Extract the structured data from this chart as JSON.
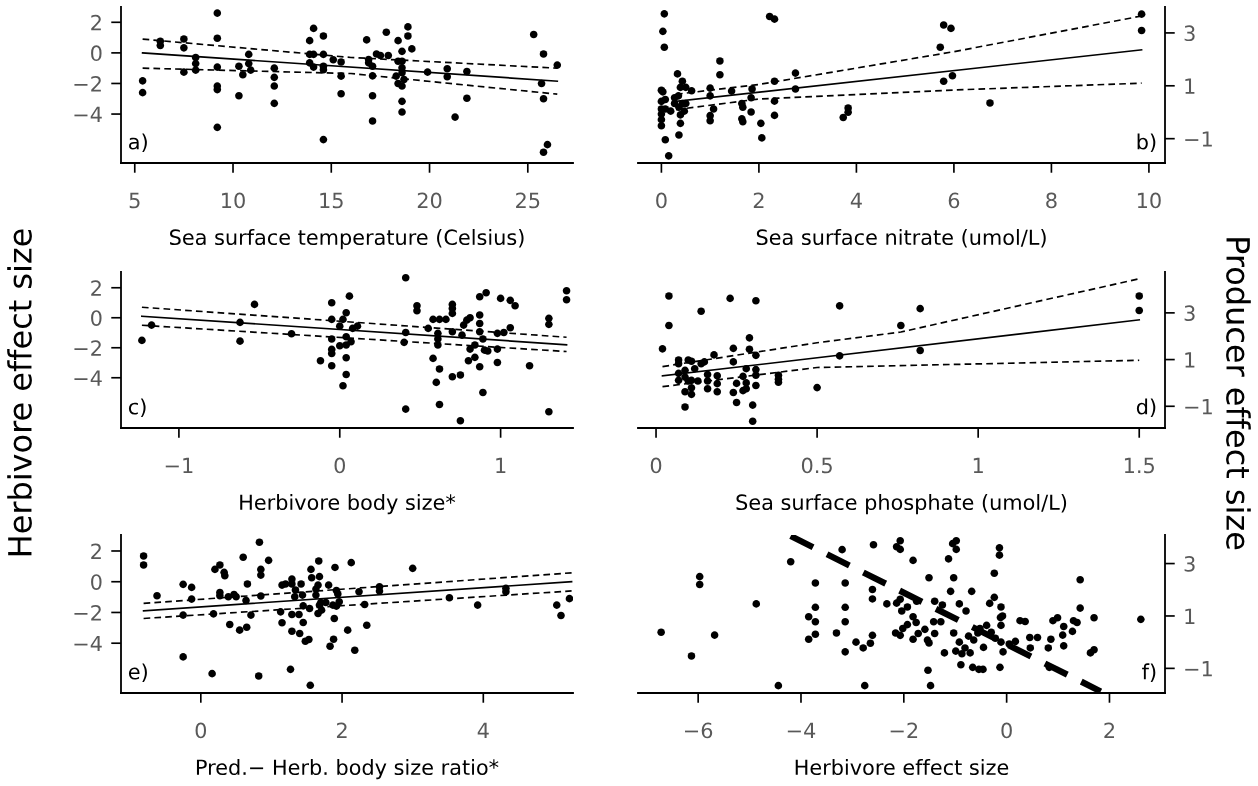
{
  "chart_data": [
    {
      "type": "scatter",
      "xlabel": "Sea surface temperature (Celsius)",
      "ylabel": "Herbivore effect size",
      "xlim": [
        4.3,
        27.3
      ],
      "xticks": [
        5,
        10,
        15,
        20,
        25
      ],
      "ylim": [
        -7.2,
        3.0
      ],
      "yticks": [
        2,
        0,
        -2,
        -4
      ],
      "grid": false,
      "legend": false,
      "annotations": [
        "a)"
      ],
      "series": [
        {
          "color": "#000000",
          "marker": "circle",
          "x": [
            5.4,
            5.4,
            6.3,
            6.3,
            7.5,
            7.5,
            7.5,
            8.1,
            8.1,
            8.1,
            9.2,
            9.2,
            9.2,
            9.2,
            9.2,
            9.2,
            10.3,
            10.3,
            10.5,
            10.8,
            10.8,
            10.9,
            12.1,
            12.1,
            12.1,
            12.1,
            13.9,
            13.9,
            13.9,
            14.1,
            14.1,
            14.1,
            14.6,
            14.6,
            14.6,
            14.6,
            14.6,
            15.1,
            15.5,
            15.5,
            15.5,
            16.8,
            16.9,
            16.9,
            17.1,
            17.1,
            17.1,
            17.1,
            17.3,
            17.5,
            17.8,
            17.9,
            18.4,
            18.4,
            18.3,
            18.4,
            18.6,
            18.6,
            18.6,
            18.6,
            18.6,
            18.6,
            18.6,
            18.7,
            18.9,
            18.9,
            19.1,
            19.9,
            20.9,
            20.9,
            21.3,
            21.9,
            21.9,
            25.3,
            25.8,
            25.7,
            25.8,
            25.8,
            26.0,
            26.5
          ],
          "values": [
            -1.83,
            -2.6,
            0.76,
            0.48,
            0.91,
            0.33,
            -1.26,
            -0.3,
            -0.7,
            -1.13,
            2.6,
            0.96,
            -0.93,
            -2.17,
            -2.4,
            -4.87,
            -0.87,
            -2.8,
            -1.43,
            -0.1,
            -0.7,
            -1.13,
            -1.0,
            -1.6,
            -2.17,
            -3.3,
            0.8,
            -0.1,
            -0.65,
            1.6,
            -0.1,
            -0.93,
            1.1,
            -0.1,
            -0.87,
            -1.1,
            -5.67,
            -0.45,
            -0.6,
            -1.52,
            -2.67,
            0.85,
            -0.43,
            -0.65,
            -0.87,
            -1.5,
            -2.8,
            -4.45,
            -0.07,
            -0.17,
            1.35,
            -0.17,
            0.8,
            -0.55,
            -1.52,
            -2.0,
            0.1,
            -0.55,
            -0.98,
            -1.3,
            -2.17,
            -3.17,
            -3.87,
            -1.74,
            1.7,
            1.1,
            0.26,
            -1.26,
            -1.04,
            -1.56,
            -4.2,
            -1.22,
            -2.97,
            1.2,
            -0.07,
            -2.0,
            -3.0,
            -6.5,
            -6.0,
            -0.8
          ]
        },
        {
          "type": "line",
          "color": "#000000",
          "line_style": "solid",
          "x": [
            5.4,
            26.5
          ],
          "values": [
            0.0,
            -1.85
          ]
        },
        {
          "type": "line",
          "color": "#000000",
          "line_style": "dashed",
          "x": [
            5.4,
            16,
            26.5
          ],
          "values": [
            0.9,
            -0.3,
            -1.0
          ]
        },
        {
          "type": "line",
          "color": "#000000",
          "line_style": "dashed",
          "x": [
            5.4,
            16,
            26.5
          ],
          "values": [
            -1.0,
            -1.35,
            -2.7
          ]
        }
      ]
    },
    {
      "type": "scatter",
      "xlabel": "Sea surface nitrate (umol/L)",
      "xlim": [
        -0.48,
        10.33
      ],
      "xticks": [
        0,
        2,
        4,
        6,
        8,
        10
      ],
      "y2lim": [
        -1.92,
        3.98
      ],
      "y2ticks": [
        3,
        1,
        -1
      ],
      "grid": false,
      "legend": false,
      "annotations": [
        "b)"
      ],
      "series": [
        {
          "axis": "y2",
          "color": "#000000",
          "marker": "circle",
          "x": [
            0.06,
            0.03,
            0.06,
            0,
            0.03,
            0,
            0.08,
            0,
            0,
            0,
            0,
            0.08,
            0.08,
            0.15,
            0.33,
            0.43,
            0.39,
            0.5,
            0.27,
            0.35,
            0.27,
            0.36,
            0.43,
            0.5,
            0.39,
            0.39,
            0.36,
            0.19,
            0.62,
            0.47,
            1.2,
            1.2,
            1.0,
            1.0,
            1.0,
            1.0,
            1.07,
            1.44,
            1.65,
            1.67,
            1.65,
            1.67,
            1.86,
            1.84,
            1.84,
            2.04,
            2.06,
            2.22,
            2.32,
            2.32,
            2.32,
            2.32,
            2.75,
            2.75,
            3.73,
            3.83,
            3.83,
            5.72,
            5.79,
            5.94,
            5.79,
            5.97,
            6.74,
            9.85,
            9.85
          ],
          "values": [
            3.72,
            3.06,
            2.46,
            0.83,
            0.77,
            0.41,
            0.48,
            0.12,
            -0.07,
            -0.28,
            -0.51,
            0.12,
            -1.04,
            -1.65,
            1.45,
            1.17,
            0.94,
            0.94,
            0.55,
            0.62,
            0.33,
            0.19,
            0.33,
            0.33,
            -0.1,
            -0.42,
            -0.86,
            0.04,
            0.81,
            0.04,
            1.94,
            1.42,
            0.91,
            0.62,
            -0.13,
            -0.32,
            0.12,
            0.8,
            0.33,
            0.19,
            -0.25,
            -0.36,
            0.88,
            0.55,
            0.01,
            -0.42,
            -0.97,
            3.62,
            3.52,
            1.17,
            0.42,
            -0.12,
            1.48,
            0.88,
            -0.2,
            0.16,
            0,
            2.46,
            3.3,
            3.17,
            1.17,
            1.38,
            0.35,
            3.71,
            3.09
          ]
        },
        {
          "type": "line",
          "axis": "y2",
          "color": "#000000",
          "line_style": "solid",
          "x": [
            0.3,
            9.85
          ],
          "values": [
            0.41,
            2.36
          ]
        },
        {
          "type": "line",
          "axis": "y2",
          "color": "#000000",
          "line_style": "dashed",
          "x": [
            0.3,
            2,
            6,
            9.85
          ],
          "values": [
            0.68,
            1.05,
            2.29,
            3.64
          ]
        },
        {
          "type": "line",
          "axis": "y2",
          "color": "#000000",
          "line_style": "dashed",
          "x": [
            0.3,
            2,
            6,
            9.85
          ],
          "values": [
            0.1,
            0.5,
            0.84,
            1.1
          ]
        }
      ]
    },
    {
      "type": "scatter",
      "xlabel": "Herbivore body size*",
      "xlim": [
        -1.36,
        1.45
      ],
      "xticks": [
        -1,
        0,
        1
      ],
      "ylim": [
        -7.35,
        3.05
      ],
      "yticks": [
        2,
        0,
        -2,
        -4
      ],
      "grid": false,
      "legend": false,
      "annotations": [
        "c)"
      ],
      "series": [
        {
          "color": "#000000",
          "marker": "circle",
          "x": [
            -1.23,
            -1.17,
            -0.62,
            -0.62,
            -0.53,
            -0.3,
            -0.12,
            -0.05,
            -0.05,
            -0.05,
            -0.05,
            -0.05,
            -0.05,
            0.02,
            0,
            0.04,
            0.06,
            0.04,
            0.04,
            0.04,
            0.04,
            0.02,
            0,
            0.07,
            0.11,
            0.08,
            0.41,
            0.41,
            0.4,
            0.41,
            0.48,
            0.48,
            0.55,
            0.58,
            0.61,
            0.61,
            0.61,
            0.58,
            0.62,
            0.6,
            0.62,
            0.62,
            0.66,
            0.7,
            0.7,
            0.7,
            0.7,
            0.7,
            0.75,
            0.75,
            0.76,
            0.77,
            0.79,
            0.81,
            0.8,
            0.81,
            0.84,
            0.84,
            0.87,
            0.87,
            0.87,
            0.87,
            0.87,
            0.89,
            0.89,
            0.91,
            0.9,
            0.92,
            0.98,
            0.98,
            0.98,
            1.0,
            1.02,
            1.06,
            1.09,
            1.06,
            1.18,
            1.3,
            1.3,
            1.3,
            1.41,
            1.41
          ],
          "values": [
            -1.51,
            -0.49,
            -0.31,
            -1.56,
            0.89,
            -1.07,
            -2.87,
            1.0,
            -0.11,
            -1.42,
            -2.11,
            -2.38,
            -3.2,
            -0.11,
            -0.56,
            0.33,
            1.44,
            -1.27,
            -1.82,
            -2.67,
            -3.78,
            -4.53,
            -1.87,
            -1.6,
            -0.56,
            -0.71,
            2.67,
            -0.98,
            -1.64,
            -6.09,
            0.8,
            0.47,
            -0.71,
            -0.11,
            -1.04,
            -1.42,
            -1.82,
            -2.71,
            -3.42,
            -4.31,
            -5.78,
            -0.11,
            -0.11,
            0.89,
            0.62,
            0.29,
            -0.93,
            -3.93,
            -3.82,
            -6.87,
            -1.16,
            -0.49,
            -0.16,
            0,
            -2.87,
            -2.09,
            -1.82,
            -2.64,
            1.4,
            0.18,
            -0.38,
            -0.93,
            -3.27,
            -4.98,
            -1.42,
            1.67,
            -2.16,
            -2.22,
            -2.09,
            -2.98,
            -1.04,
            1.29,
            -0.98,
            1.16,
            0.8,
            -0.67,
            -3.2,
            -0.04,
            -0.44,
            -6.27,
            1.8,
            1.2
          ]
        },
        {
          "type": "line",
          "color": "#000000",
          "line_style": "solid",
          "x": [
            -1.23,
            1.41
          ],
          "values": [
            0.1,
            -1.8
          ]
        },
        {
          "type": "line",
          "color": "#000000",
          "line_style": "dashed",
          "x": [
            -1.23,
            1.41
          ],
          "values": [
            0.7,
            -1.3
          ]
        },
        {
          "type": "line",
          "color": "#000000",
          "line_style": "dashed",
          "x": [
            -1.23,
            1.41
          ],
          "values": [
            -0.5,
            -2.25
          ]
        }
      ]
    },
    {
      "type": "scatter",
      "xlabel": "Sea surface phosphate (umol/L)",
      "y2label": "Producer effect size",
      "xlim": [
        -0.056,
        1.58
      ],
      "xticks": [
        0,
        0.5,
        1,
        1.5
      ],
      "y2lim": [
        -1.93,
        4.75
      ],
      "y2ticks": [
        3,
        1,
        -1
      ],
      "grid": false,
      "legend": false,
      "annotations": [
        "d)"
      ],
      "series": [
        {
          "axis": "y2",
          "color": "#000000",
          "marker": "circle",
          "x": [
            0.02,
            0.04,
            0.04,
            0.07,
            0.07,
            0.07,
            0.07,
            0.09,
            0.09,
            0.09,
            0.09,
            0.1,
            0.1,
            0.11,
            0.11,
            0.12,
            0.11,
            0.11,
            0.13,
            0.14,
            0.14,
            0.15,
            0.16,
            0.16,
            0.16,
            0.18,
            0.19,
            0.19,
            0.19,
            0.23,
            0.24,
            0.24,
            0.24,
            0.25,
            0.25,
            0.27,
            0.27,
            0.28,
            0.28,
            0.28,
            0.29,
            0.29,
            0.3,
            0.3,
            0.31,
            0.31,
            0.31,
            0.31,
            0.31,
            0.38,
            0.38,
            0.38,
            0.5,
            0.57,
            0.57,
            0.76,
            0.82,
            0.82,
            1.5,
            1.5
          ],
          "values": [
            1.46,
            3.72,
            2.46,
            0.98,
            0.82,
            0.41,
            0.11,
            0.54,
            0.25,
            -0.38,
            -1.03,
            0.98,
            0.08,
            -0.49,
            0.93,
            0.61,
            0.11,
            -0.21,
            0.08,
            3.07,
            0.82,
            0.9,
            0.08,
            -0.25,
            0.36,
            1.2,
            -0.03,
            -0.38,
            0.31,
            3.62,
            1.48,
            0.9,
            -0.41,
            -0.02,
            -0.84,
            0.28,
            -0.33,
            0.61,
            0.0,
            -0.25,
            1.93,
            1.44,
            -0.95,
            -1.64,
            3.52,
            1.18,
            0.57,
            0.33,
            -0.11,
            0.33,
            0.16,
            0.03,
            -0.2,
            3.3,
            1.16,
            2.46,
            3.18,
            1.39,
            3.72,
            3.1
          ]
        },
        {
          "type": "line",
          "axis": "y2",
          "color": "#000000",
          "line_style": "solid",
          "x": [
            0.02,
            1.5
          ],
          "values": [
            0.3,
            2.7
          ]
        },
        {
          "type": "line",
          "axis": "y2",
          "color": "#000000",
          "line_style": "dashed",
          "x": [
            0.02,
            0.5,
            0.76,
            1.5
          ],
          "values": [
            0.7,
            1.72,
            2.18,
            4.46
          ]
        },
        {
          "type": "line",
          "axis": "y2",
          "color": "#000000",
          "line_style": "dashed",
          "x": [
            0.02,
            0.5,
            1.5
          ],
          "values": [
            -0.16,
            0.66,
            0.97
          ]
        }
      ]
    },
    {
      "type": "scatter",
      "xlabel": "Pred.− Herb. body size ratio*",
      "xlim": [
        -1.13,
        5.27
      ],
      "xticks": [
        0,
        2,
        4
      ],
      "ylim": [
        -7.24,
        3.04
      ],
      "yticks": [
        2,
        0,
        -2,
        -4
      ],
      "grid": false,
      "legend": false,
      "annotations": [
        "e)"
      ],
      "series": [
        {
          "color": "#000000",
          "marker": "circle",
          "x": [
            -0.81,
            -0.81,
            -0.62,
            -0.25,
            -0.25,
            -0.25,
            -0.13,
            -0.13,
            0.16,
            0.18,
            0.2,
            0.27,
            0.27,
            0.27,
            0.33,
            0.34,
            0.39,
            0.41,
            0.47,
            0.5,
            0.55,
            0.6,
            0.64,
            0.65,
            0.66,
            0.71,
            0.82,
            0.83,
            0.85,
            0.85,
            0.85,
            0.96,
            1.13,
            1.15,
            1.15,
            1.2,
            1.27,
            1.29,
            1.29,
            1.29,
            1.29,
            1.33,
            1.34,
            1.39,
            1.4,
            1.42,
            1.44,
            1.45,
            1.45,
            1.48,
            1.53,
            1.55,
            1.54,
            1.56,
            1.57,
            1.63,
            1.63,
            1.66,
            1.66,
            1.67,
            1.68,
            1.68,
            1.7,
            1.71,
            1.77,
            1.81,
            1.83,
            1.87,
            1.88,
            1.89,
            1.9,
            1.92,
            1.92,
            1.94,
            1.96,
            2.08,
            2.13,
            2.18,
            2.24,
            2.32,
            2.35,
            2.53,
            2.53,
            3.0,
            3.52,
            3.92,
            4.32,
            4.32,
            5.04,
            5.1,
            5.22
          ],
          "values": [
            1.67,
            1.09,
            -0.91,
            -0.17,
            -2.17,
            -4.89,
            -0.37,
            -1.13,
            -5.98,
            -2.09,
            0.8,
            1.09,
            -0.7,
            -0.91,
            0.61,
            0.39,
            -0.98,
            -2.78,
            -0.83,
            -0.98,
            -3.15,
            1.59,
            -1.22,
            -2.96,
            -0.15,
            -2.17,
            -6.13,
            2.57,
            0.8,
            0.43,
            -0.93,
            1.39,
            -1.96,
            -2.67,
            -0.22,
            -0.15,
            -5.7,
            0.17,
            -0.15,
            -2.13,
            -3.22,
            -0.98,
            -0.54,
            -2.13,
            -3.37,
            -0.15,
            -0.87,
            -1.57,
            -2.65,
            -3.87,
            -3.76,
            -6.74,
            -1.74,
            0.8,
            0.26,
            -0.48,
            -0.87,
            -0.22,
            -2.07,
            1.35,
            -1.52,
            0.33,
            -1.35,
            -1.85,
            -1.35,
            -0.22,
            -4.2,
            -1.52,
            -3.74,
            -2.39,
            0.93,
            -0.57,
            -1.59,
            -0.8,
            -1.3,
            -3.15,
            1.24,
            -4.46,
            -0.65,
            -1.48,
            -2.83,
            -0.33,
            -0.61,
            0.87,
            -1.04,
            -1.52,
            -0.43,
            -0.65,
            -1.52,
            -2.2,
            -1.1
          ]
        },
        {
          "type": "line",
          "color": "#000000",
          "line_style": "solid",
          "x": [
            -0.81,
            5.25
          ],
          "values": [
            -1.89,
            0.0
          ]
        },
        {
          "type": "line",
          "color": "#000000",
          "line_style": "dashed",
          "x": [
            -0.81,
            5.25
          ],
          "values": [
            -1.41,
            0.58
          ]
        },
        {
          "type": "line",
          "color": "#000000",
          "line_style": "dashed",
          "x": [
            -0.81,
            5.25
          ],
          "values": [
            -2.39,
            -0.6
          ]
        }
      ]
    },
    {
      "type": "scatter",
      "xlabel": "Herbivore effect size",
      "xlim": [
        -7.17,
        3.08
      ],
      "xticks": [
        -6,
        -4,
        -2,
        0,
        2
      ],
      "y2lim": [
        -1.94,
        4.09
      ],
      "y2ticks": [
        3,
        1,
        -1
      ],
      "grid": false,
      "legend": false,
      "annotations": [
        "f)"
      ],
      "series": [
        {
          "axis": "y2",
          "color": "#000000",
          "marker": "circle",
          "x": [
            -6.72,
            -6.13,
            -5.97,
            -5.97,
            -5.68,
            -4.87,
            -4.44,
            -4.2,
            -3.85,
            -3.85,
            -3.72,
            -3.72,
            -3.72,
            -3.72,
            -3.31,
            -3.2,
            -3.14,
            -3.14,
            -3.14,
            -3.14,
            -2.93,
            -2.79,
            -2.76,
            -2.65,
            -2.61,
            -2.59,
            -2.61,
            -2.61,
            -2.33,
            -2.14,
            -2.14,
            -2.07,
            -2.07,
            -2.07,
            -2.04,
            -1.93,
            -2.16,
            -2.07,
            -2.02,
            -1.93,
            -1.82,
            -1.82,
            -1.82,
            -1.75,
            -1.76,
            -1.72,
            -1.59,
            -1.54,
            -1.51,
            -1.51,
            -1.53,
            -1.48,
            -1.4,
            -1.42,
            -1.4,
            -1.28,
            -1.25,
            -1.21,
            -1.13,
            -1.09,
            -1.03,
            -1.05,
            -0.98,
            -0.98,
            -1.03,
            -0.99,
            -0.92,
            -0.92,
            -0.89,
            -0.87,
            -0.79,
            -0.81,
            -0.74,
            -0.71,
            -0.68,
            -0.66,
            -0.64,
            -0.56,
            -0.54,
            -0.46,
            -0.52,
            -0.45,
            -0.39,
            -0.33,
            -0.3,
            -0.24,
            -0.24,
            -0.22,
            -0.14,
            -0.14,
            -0.13,
            -0.12,
            -0.11,
            -0.11,
            -0.11,
            -0.08,
            -0.07,
            0.05,
            0.17,
            0.26,
            0.36,
            0.45,
            0.46,
            0.6,
            0.81,
            0.83,
            0.86,
            0.9,
            0.99,
            1.11,
            1.11,
            1.09,
            1.28,
            1.3,
            1.37,
            1.43,
            1.43,
            1.63,
            1.7,
            1.7,
            2.61
          ],
          "values": [
            0.38,
            -0.53,
            2.5,
            2.2,
            0.27,
            1.46,
            -1.66,
            3.07,
            0.11,
            0.97,
            2.26,
            1.33,
            0.78,
            0.3,
            0.35,
            3.53,
            2.26,
            1.33,
            0.78,
            -0.37,
            0.0,
            -0.22,
            -1.66,
            -0.04,
            0.26,
            3.72,
            2.01,
            1.65,
            1.46,
            1.49,
            3.64,
            3.87,
            3.54,
            1.64,
            1.19,
            1.34,
            0.35,
            0.26,
            0.52,
            0.67,
            3.12,
            0.97,
            0.11,
            1.56,
            0.75,
            0.33,
            0.49,
            0.08,
            2.46,
            -0.03,
            -1.07,
            -1.66,
            1.56,
            0.78,
            0.33,
            0.78,
            1.42,
            -0.41,
            3.18,
            1.94,
            2.46,
            3.76,
            3.87,
            3.54,
            0.35,
            -0.34,
            1.46,
            0.0,
            -0.86,
            -0.44,
            1.19,
            -0.22,
            0.23,
            -0.41,
            1.94,
            -0.96,
            0.08,
            0.35,
            -1.04,
            -1.04,
            0.52,
            -0.2,
            0.64,
            1.48,
            0.38,
            2.63,
            1.71,
            0.15,
            3.6,
            3.32,
            -0.96,
            0.94,
            1.34,
            0.64,
            0.0,
            1.0,
            -0.37,
            -0.07,
            0.03,
            0.82,
            0.79,
            0.18,
            -0.22,
            0.18,
            -0.22,
            -0.96,
            0.11,
            0.82,
            0.93,
            0.6,
            -0.14,
            0.27,
            0.41,
            0.82,
            0.75,
            2.38,
            1.3,
            -0.41,
            -0.29,
            0.93,
            0.87
          ]
        },
        {
          "type": "line",
          "axis": "y2",
          "color": "#000000",
          "line_style": "dashed",
          "x": [
            -4.2,
            1.83
          ],
          "values": [
            4.05,
            -1.88
          ]
        }
      ]
    }
  ]
}
